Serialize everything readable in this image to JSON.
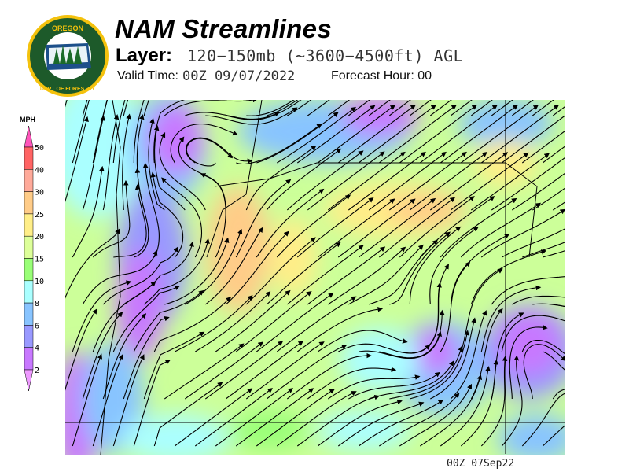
{
  "header": {
    "logo_text": "OREGON DEPARTMENT OF FORESTRY",
    "title": "NAM Streamlines",
    "layer_label": "Layer:",
    "layer_value": "120−150mb (~3600−4500ft) AGL",
    "valid_label": "Valid Time:",
    "valid_value": "00Z 09/07/2022",
    "forecast_hour": "Forecast Hour: 00"
  },
  "legend": {
    "unit": "MPH",
    "ticks": [
      "50",
      "40",
      "30",
      "25",
      "20",
      "15",
      "10",
      "8",
      "6",
      "4",
      "2"
    ],
    "colors": [
      "#ff6464",
      "#ffaa9a",
      "#ffcc88",
      "#ffee88",
      "#ddff99",
      "#99ff77",
      "#aaffff",
      "#88c4ff",
      "#9999ff",
      "#c878ff"
    ],
    "top_arrow_color": "#ff55bb",
    "bottom_arrow_color": "#ee99ff"
  },
  "map": {
    "field": "wind speed streamlines",
    "background_color": "#ccff99"
  },
  "footer": {
    "stamp": "00Z 07Sep22"
  }
}
